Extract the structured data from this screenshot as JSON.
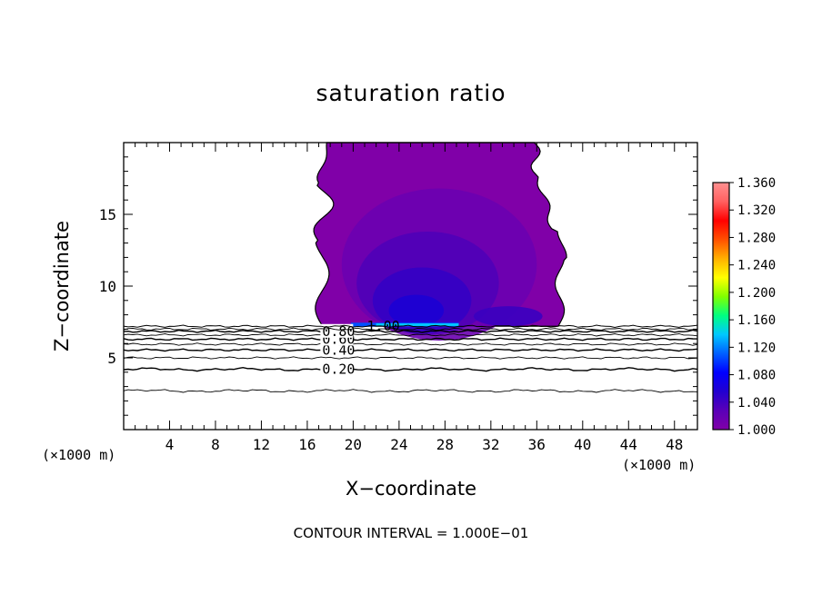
{
  "chart_data": {
    "type": "heatmap",
    "title": "saturation ratio",
    "xlabel": "X−coordinate",
    "ylabel": "Z−coordinate",
    "x_unit": "(×1000 m)",
    "z_unit": "(×1000 m)",
    "xlim": [
      0,
      50
    ],
    "ylim": [
      0,
      20
    ],
    "xticks": [
      4,
      8,
      12,
      16,
      20,
      24,
      28,
      32,
      36,
      40,
      44,
      48
    ],
    "yticks": [
      5,
      10,
      15
    ],
    "colorbar": {
      "labels": [
        "1.360",
        "1.320",
        "1.280",
        "1.240",
        "1.200",
        "1.160",
        "1.120",
        "1.080",
        "1.040",
        "1.000"
      ],
      "min": 1.0,
      "max": 1.36,
      "colors": [
        "#8000a8",
        "#5a00b8",
        "#2200d0",
        "#0000ff",
        "#0060ff",
        "#00c8ff",
        "#00ff80",
        "#80ff00",
        "#ffff00",
        "#ffb000",
        "#ff5000",
        "#ff0000",
        "#ff6060",
        "#ff9090"
      ]
    },
    "supersaturated_region": {
      "x_range": [
        17.3,
        38.2
      ],
      "z_range": [
        7.2,
        20
      ],
      "max_value_approx": 1.08
    },
    "contour_levels": [
      {
        "value": 0.1,
        "z": 2.7,
        "label": ""
      },
      {
        "value": 0.2,
        "z": 4.2,
        "label": "0.20"
      },
      {
        "value": 0.3,
        "z": 5.0,
        "label": ""
      },
      {
        "value": 0.4,
        "z": 5.55,
        "label": "0.40"
      },
      {
        "value": 0.5,
        "z": 5.95,
        "label": ""
      },
      {
        "value": 0.6,
        "z": 6.3,
        "label": "0.60"
      },
      {
        "value": 0.7,
        "z": 6.6,
        "label": ""
      },
      {
        "value": 0.8,
        "z": 6.85,
        "label": "0.80"
      },
      {
        "value": 0.9,
        "z": 7.0,
        "label": ""
      },
      {
        "value": 1.0,
        "z": 7.2,
        "label": "1.00"
      }
    ],
    "contour_interval": "CONTOUR INTERVAL =  1.000E−01"
  }
}
